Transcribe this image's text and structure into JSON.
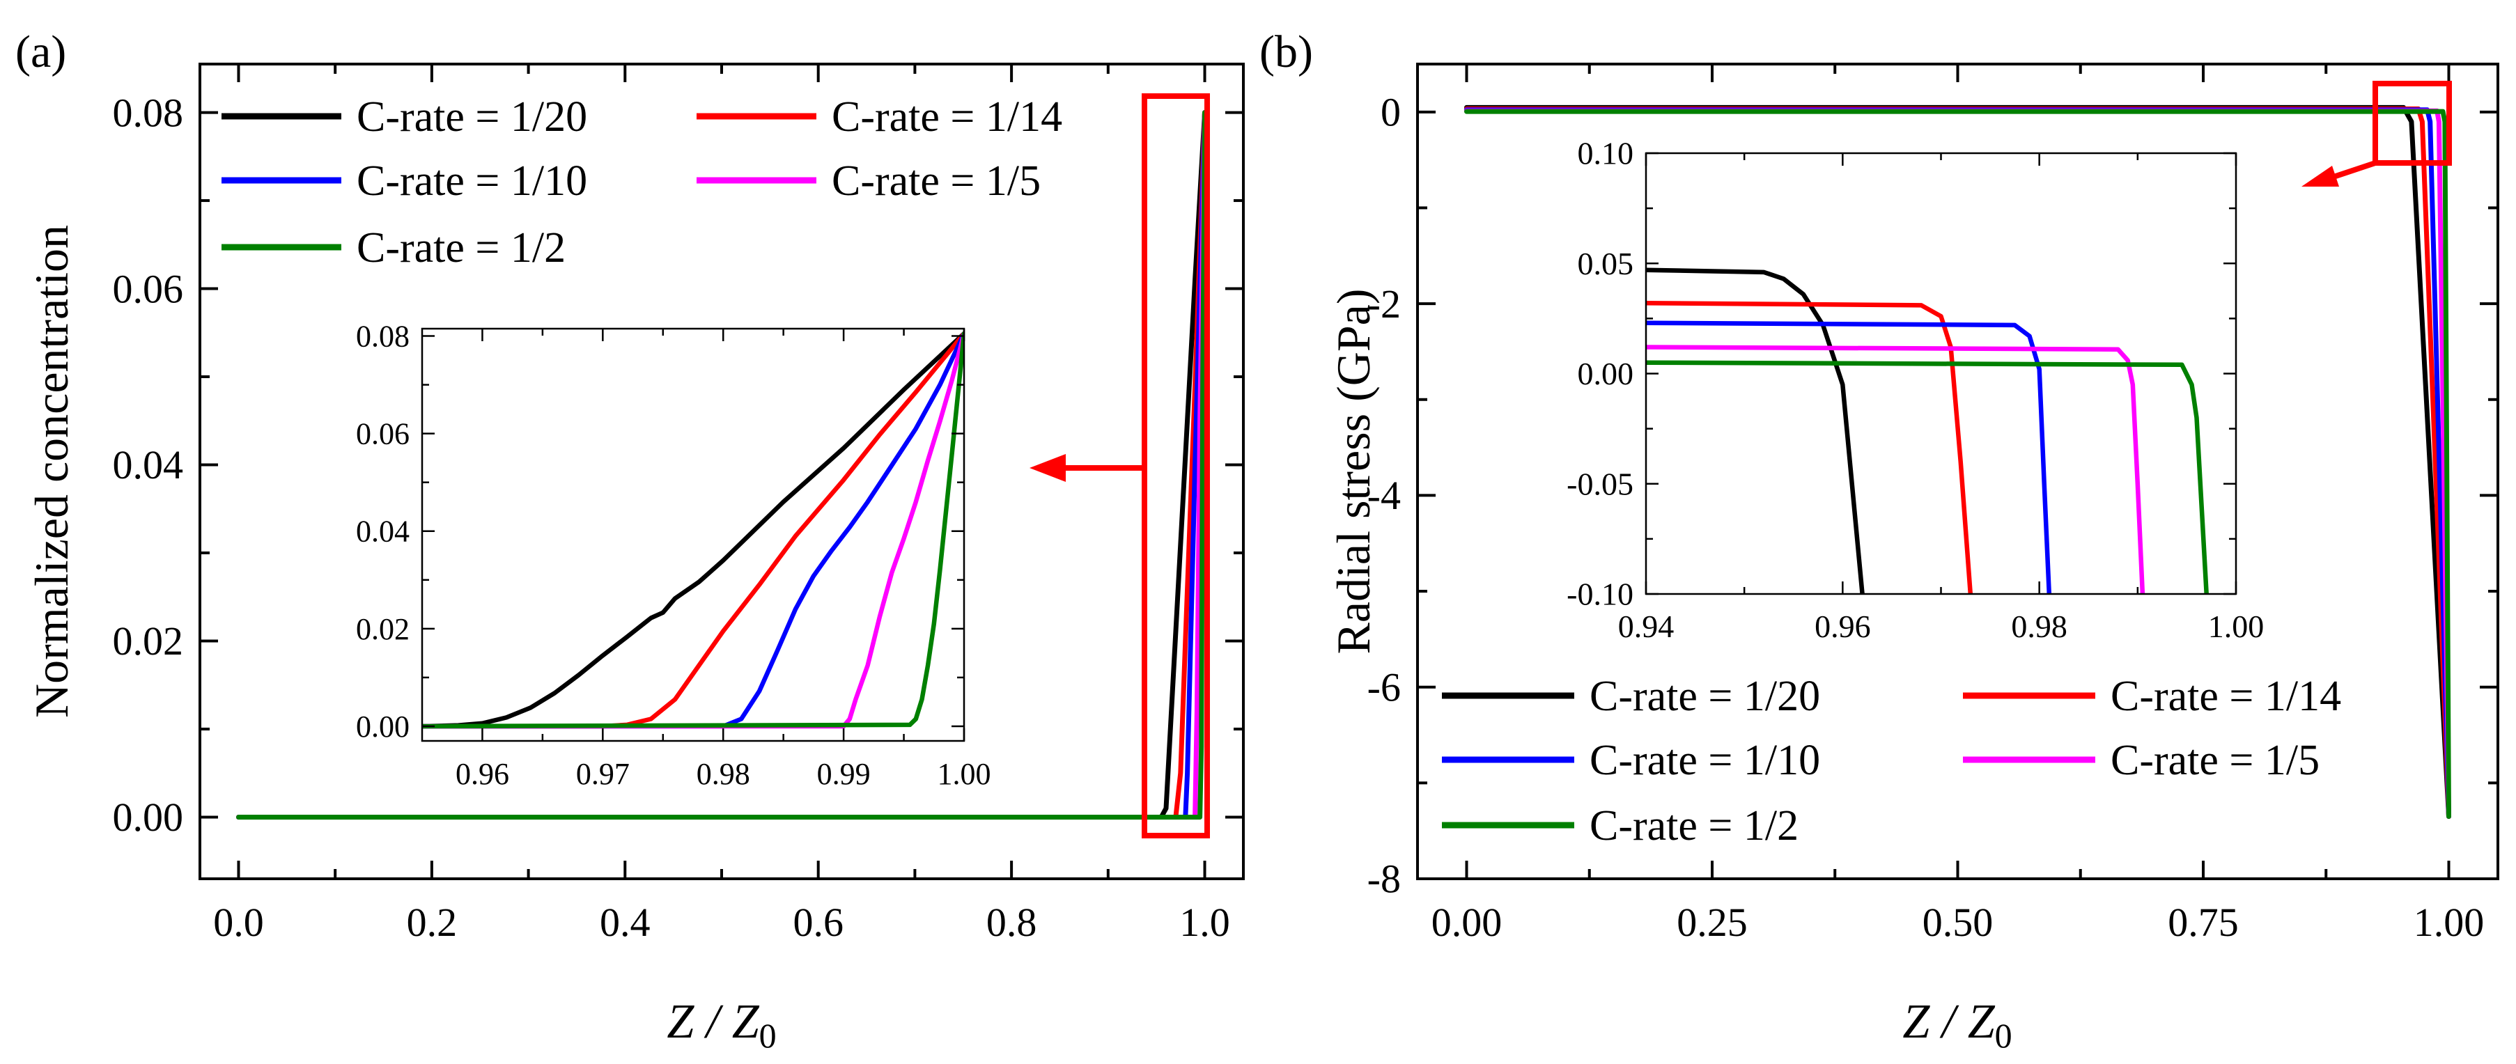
{
  "colors": {
    "C-rate = 1/20": "#000000",
    "C-rate = 1/14": "#ff0000",
    "C-rate = 1/10": "#0000ff",
    "C-rate = 1/5": "#ff00ff",
    "C-rate = 1/2": "#008000",
    "highlight": "#ff0000"
  },
  "chart_data": [
    {
      "panel_label": "(a)",
      "type": "line",
      "title": "",
      "ylabel": "Normalized concentration",
      "xlabel": "Z / Z",
      "xlabel_subscript": "0",
      "xlim": [
        -0.04,
        1.04
      ],
      "ylim": [
        -0.007,
        0.0855
      ],
      "xticks": [
        0.0,
        0.2,
        0.4,
        0.6,
        0.8,
        1.0
      ],
      "xtick_labels": [
        "0.0",
        "0.2",
        "0.4",
        "0.6",
        "0.8",
        "1.0"
      ],
      "yticks": [
        0.0,
        0.02,
        0.04,
        0.06,
        0.08
      ],
      "ytick_labels": [
        "0.00",
        "0.02",
        "0.04",
        "0.06",
        "0.08"
      ],
      "legend_position": "top-left",
      "series": [
        {
          "name": "C-rate = 1/20",
          "x": [
            0,
            0.955,
            0.96,
            0.97,
            0.98,
            0.99,
            1.0
          ],
          "y": [
            0,
            0,
            0.001,
            0.021,
            0.041,
            0.061,
            0.08
          ]
        },
        {
          "name": "C-rate = 1/14",
          "x": [
            0,
            0.97,
            0.975,
            0.98,
            0.99,
            1.0
          ],
          "y": [
            0,
            0,
            0.005,
            0.02,
            0.049,
            0.08
          ]
        },
        {
          "name": "C-rate = 1/10",
          "x": [
            0,
            0.98,
            0.982,
            0.99,
            1.0
          ],
          "y": [
            0,
            0,
            0.005,
            0.04,
            0.08
          ]
        },
        {
          "name": "C-rate = 1/5",
          "x": [
            0,
            0.99,
            0.992,
            0.995,
            1.0
          ],
          "y": [
            0,
            0,
            0.012,
            0.045,
            0.08
          ]
        },
        {
          "name": "C-rate = 1/2",
          "x": [
            0,
            0.995,
            0.9965,
            0.998,
            1.0
          ],
          "y": [
            0,
            0,
            0.008,
            0.05,
            0.08
          ]
        }
      ],
      "inset": {
        "xlim": [
          0.955,
          1.0
        ],
        "ylim": [
          -0.003,
          0.0815
        ],
        "xticks": [
          0.96,
          0.97,
          0.98,
          0.99,
          1.0
        ],
        "xtick_labels": [
          "0.96",
          "0.97",
          "0.98",
          "0.99",
          "1.00"
        ],
        "yticks": [
          0.0,
          0.02,
          0.04,
          0.06,
          0.08
        ],
        "ytick_labels": [
          "0.00",
          "0.02",
          "0.04",
          "0.06",
          "0.08"
        ],
        "series": [
          {
            "name": "C-rate = 1/20",
            "x": [
              0.955,
              0.958,
              0.96,
              0.962,
              0.964,
              0.966,
              0.968,
              0.97,
              0.972,
              0.974,
              0.975,
              0.976,
              0.978,
              0.98,
              0.985,
              0.99,
              0.995,
              1.0
            ],
            "y": [
              0,
              0.0002,
              0.0006,
              0.0018,
              0.0038,
              0.0068,
              0.0105,
              0.0145,
              0.0183,
              0.0222,
              0.0233,
              0.0262,
              0.0296,
              0.034,
              0.046,
              0.057,
              0.069,
              0.0805
            ]
          },
          {
            "name": "C-rate = 1/14",
            "x": [
              0.955,
              0.97,
              0.972,
              0.974,
              0.976,
              0.978,
              0.98,
              0.983,
              0.986,
              0.99,
              0.993,
              0.996,
              1.0
            ],
            "y": [
              0,
              0,
              0.0003,
              0.0015,
              0.0055,
              0.0125,
              0.0195,
              0.029,
              0.039,
              0.0505,
              0.0598,
              0.0685,
              0.0805
            ]
          },
          {
            "name": "C-rate = 1/10",
            "x": [
              0.955,
              0.98,
              0.9815,
              0.983,
              0.9845,
              0.986,
              0.9875,
              0.989,
              0.9905,
              0.992,
              0.994,
              0.996,
              0.998,
              1.0
            ],
            "y": [
              0,
              0,
              0.0015,
              0.0072,
              0.0155,
              0.024,
              0.0308,
              0.036,
              0.0408,
              0.046,
              0.0535,
              0.061,
              0.07,
              0.0805
            ]
          },
          {
            "name": "C-rate = 1/5",
            "x": [
              0.955,
              0.99,
              0.9905,
              0.991,
              0.992,
              0.993,
              0.994,
              0.995,
              0.996,
              0.997,
              0.998,
              0.999,
              1.0
            ],
            "y": [
              0,
              0,
              0.0015,
              0.0055,
              0.0125,
              0.0225,
              0.0315,
              0.0385,
              0.046,
              0.0545,
              0.0625,
              0.071,
              0.0805
            ]
          },
          {
            "name": "C-rate = 1/2",
            "x": [
              0.955,
              0.9955,
              0.996,
              0.9965,
              0.997,
              0.9975,
              0.998,
              0.999,
              1.0
            ],
            "y": [
              0,
              0.0003,
              0.0015,
              0.0055,
              0.0125,
              0.021,
              0.032,
              0.056,
              0.0805
            ]
          }
        ]
      }
    },
    {
      "panel_label": "(b)",
      "type": "line",
      "title": "",
      "ylabel": "Radial stress (GPa)",
      "xlabel": "Z / Z",
      "xlabel_subscript": "0",
      "xlim": [
        -0.05,
        1.05
      ],
      "ylim": [
        -8,
        0.5
      ],
      "xticks": [
        0.0,
        0.25,
        0.5,
        0.75,
        1.0
      ],
      "xtick_labels": [
        "0.00",
        "0.25",
        "0.50",
        "0.75",
        "1.00"
      ],
      "yticks": [
        0,
        -2,
        -4,
        -6,
        -8
      ],
      "ytick_labels": [
        "0",
        "-2",
        "-4",
        "-6",
        "-8"
      ],
      "legend_position": "bottom-left",
      "series": [
        {
          "name": "C-rate = 1/20",
          "x": [
            0,
            0.954,
            0.962,
            1.0
          ],
          "y": [
            0.047,
            0.047,
            -0.1,
            -7.35
          ]
        },
        {
          "name": "C-rate = 1/14",
          "x": [
            0,
            0.969,
            0.973,
            1.0
          ],
          "y": [
            0.032,
            0.032,
            -0.1,
            -7.35
          ]
        },
        {
          "name": "C-rate = 1/10",
          "x": [
            0,
            0.978,
            0.981,
            1.0
          ],
          "y": [
            0.023,
            0.023,
            -0.1,
            -7.35
          ]
        },
        {
          "name": "C-rate = 1/5",
          "x": [
            0,
            0.988,
            0.99,
            1.0
          ],
          "y": [
            0.012,
            0.012,
            -0.1,
            -7.35
          ]
        },
        {
          "name": "C-rate = 1/2",
          "x": [
            0,
            0.994,
            0.996,
            1.0
          ],
          "y": [
            0.005,
            0.005,
            -0.1,
            -7.35
          ]
        }
      ],
      "inset": {
        "xlim": [
          0.94,
          1.0
        ],
        "ylim": [
          -0.1,
          0.1
        ],
        "xticks": [
          0.94,
          0.96,
          0.98,
          1.0
        ],
        "xtick_labels": [
          "0.94",
          "0.96",
          "0.98",
          "1.00"
        ],
        "yticks": [
          0.1,
          0.05,
          0.0,
          -0.05,
          -0.1
        ],
        "ytick_labels": [
          "0.10",
          "0.05",
          "0.00",
          "-0.05",
          "-0.10"
        ],
        "series": [
          {
            "name": "C-rate = 1/20",
            "x": [
              0.94,
              0.952,
              0.954,
              0.956,
              0.958,
              0.96,
              0.962
            ],
            "y": [
              0.047,
              0.046,
              0.043,
              0.036,
              0.022,
              -0.005,
              -0.1
            ]
          },
          {
            "name": "C-rate = 1/14",
            "x": [
              0.94,
              0.968,
              0.97,
              0.971,
              0.972,
              0.973
            ],
            "y": [
              0.032,
              0.031,
              0.026,
              0.012,
              -0.04,
              -0.1
            ]
          },
          {
            "name": "C-rate = 1/10",
            "x": [
              0.94,
              0.9775,
              0.979,
              0.98,
              0.9805,
              0.981
            ],
            "y": [
              0.023,
              0.022,
              0.017,
              0.002,
              -0.05,
              -0.1
            ]
          },
          {
            "name": "C-rate = 1/5",
            "x": [
              0.94,
              0.988,
              0.989,
              0.9895,
              0.99,
              0.9905
            ],
            "y": [
              0.012,
              0.011,
              0.006,
              -0.005,
              -0.05,
              -0.1
            ]
          },
          {
            "name": "C-rate = 1/2",
            "x": [
              0.94,
              0.9945,
              0.9955,
              0.996,
              0.9965,
              0.997
            ],
            "y": [
              0.005,
              0.004,
              -0.005,
              -0.02,
              -0.06,
              -0.1
            ]
          }
        ]
      }
    }
  ]
}
